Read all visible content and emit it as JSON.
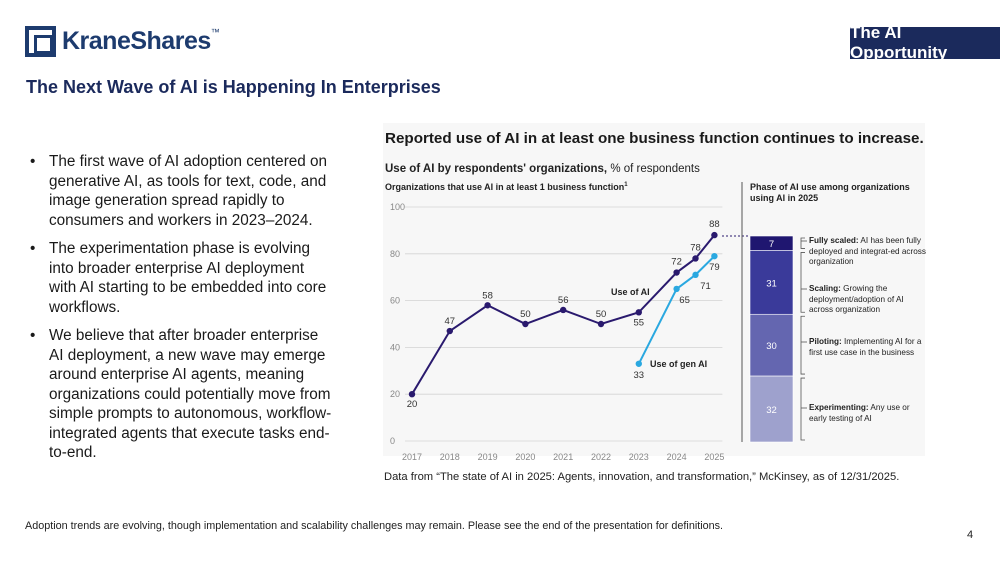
{
  "header": {
    "logo_text": "KraneShares",
    "badge": "The AI Opportunity",
    "title": "The Next Wave of AI is Happening In Enterprises"
  },
  "bullets": [
    "The first wave of AI adoption centered on generative AI, as tools for text, code, and image generation spread rapidly to consumers and workers in 2023–2024.",
    "The experimentation phase is evolving into broader enterprise AI deployment with AI starting to be embedded into core workflows.",
    "We believe that after broader enterprise AI deployment, a new wave may emerge around enterprise AI agents, meaning organizations could potentially move from simple prompts to autonomous, workflow-integrated agents that execute tasks end-to-end."
  ],
  "chart_data": [
    {
      "type": "line",
      "title": "Reported use of AI in at least one business function continues to increase.",
      "subtitle_bold": "Use of AI by respondents' organizations,",
      "subtitle_rest": " % of respondents",
      "subtitle2": "Organizations that use AI in at least 1 business function",
      "subtitle2_sup": "1",
      "x": [
        "2017",
        "2018",
        "2019",
        "2020",
        "2021",
        "2022",
        "2023",
        "2024",
        "2025"
      ],
      "ylim": [
        0,
        100
      ],
      "yticks": [
        0,
        20,
        40,
        60,
        80,
        100
      ],
      "grid": true,
      "series": [
        {
          "name": "Use of AI",
          "color": "#2a1a6e",
          "x": [
            "2017",
            "2018",
            "2019",
            "2020",
            "2021",
            "2022",
            "2023",
            "2024",
            "2024.5",
            "2025"
          ],
          "values": [
            20,
            47,
            58,
            50,
            56,
            50,
            55,
            72,
            78,
            88
          ],
          "labels": [
            "20",
            "47",
            "58",
            "50",
            "56",
            "50",
            "55",
            "72",
            "78",
            "88"
          ]
        },
        {
          "name": "Use of gen AI",
          "color": "#2aa8e0",
          "x": [
            "2023",
            "2024",
            "2024.5",
            "2025"
          ],
          "values": [
            33,
            65,
            71,
            79
          ],
          "labels": [
            "33",
            "65",
            "71",
            "79"
          ]
        }
      ]
    },
    {
      "type": "bar",
      "stacked": true,
      "title": "Phase of AI use among organizations using AI in 2025",
      "segments": [
        {
          "name": "Fully scaled:",
          "value": 7,
          "color": "#1f1670",
          "desc": " AI has been fully deployed and integrat-ed across organization"
        },
        {
          "name": "Scaling:",
          "value": 31,
          "color": "#3a3a9a",
          "desc": " Growing the deployment/adoption of AI across organization"
        },
        {
          "name": "Piloting:",
          "value": 30,
          "color": "#6466b0",
          "desc": " Implementing AI for a first use case in the business"
        },
        {
          "name": "Experimenting:",
          "value": 32,
          "color": "#9ea1cd",
          "desc": " Any use or early testing of AI"
        }
      ]
    }
  ],
  "source": "Data from “The state of AI in 2025: Agents, innovation, and transformation,” McKinsey, as of 12/31/2025.",
  "footnote": "Adoption trends are evolving, though implementation and scalability challenges may remain. Please see the end of the presentation for definitions.",
  "page_number": "4"
}
